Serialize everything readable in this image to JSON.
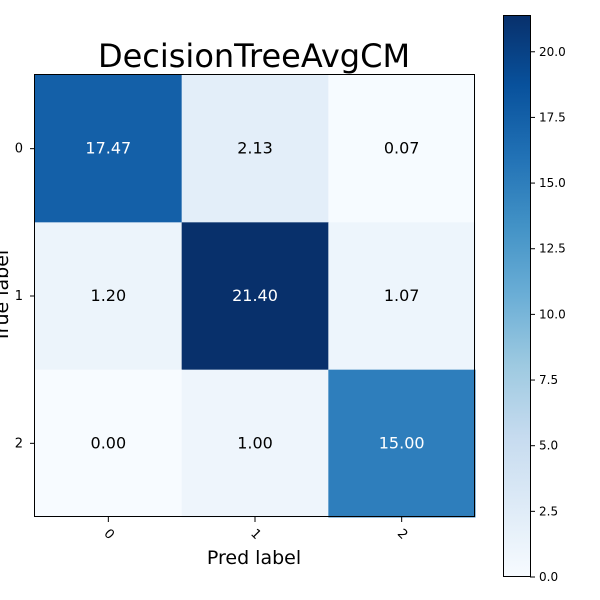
{
  "chart_data": {
    "type": "heatmap",
    "title": "DecisionTreeAvgCM",
    "xlabel": "Pred label",
    "ylabel": "True label",
    "x_categories": [
      "0",
      "1",
      "2"
    ],
    "y_categories": [
      "0",
      "1",
      "2"
    ],
    "values": [
      [
        17.47,
        2.13,
        0.07
      ],
      [
        1.2,
        21.4,
        1.07
      ],
      [
        0.0,
        1.0,
        15.0
      ]
    ],
    "cell_labels": [
      [
        "17.47",
        "2.13",
        "0.07"
      ],
      [
        "1.20",
        "21.40",
        "1.07"
      ],
      [
        "0.00",
        "1.00",
        "15.00"
      ]
    ],
    "colormap": "Blues",
    "colorbar": {
      "range": [
        0,
        21.4
      ],
      "ticks": [
        0.0,
        2.5,
        5.0,
        7.5,
        10.0,
        12.5,
        15.0,
        17.5,
        20.0
      ],
      "tick_labels": [
        "0.0",
        "2.5",
        "5.0",
        "7.5",
        "10.0",
        "12.5",
        "15.0",
        "17.5",
        "20.0"
      ]
    },
    "text_colors": {
      "dark_cell": "#ffffff",
      "light_cell": "#000000"
    }
  }
}
